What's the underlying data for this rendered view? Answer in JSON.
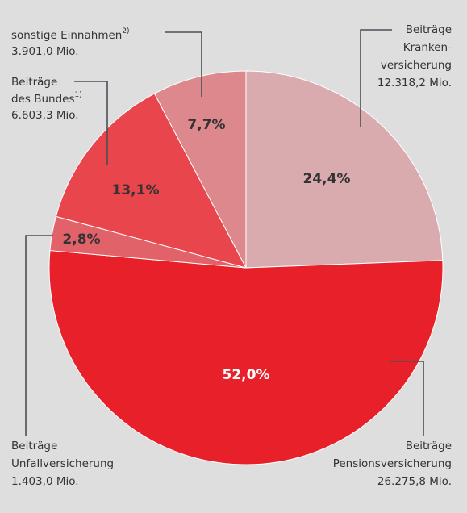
{
  "chart_data": {
    "type": "pie",
    "values": [
      24.4,
      52.0,
      2.8,
      13.1,
      7.7
    ],
    "value_labels": [
      "24,4%",
      "52,0%",
      "2,8%",
      "13,1%",
      "7,7%"
    ],
    "colors": [
      "#d9abaf",
      "#e8202a",
      "#e2626a",
      "#e8464c",
      "#dd888d"
    ],
    "labels": [
      {
        "lines": [
          "Beiträge",
          "Kranken-",
          "versicherung"
        ],
        "amount": "12.318,2 Mio."
      },
      {
        "lines": [
          "Beiträge",
          "Pensionsversicherung"
        ],
        "amount": "26.275,8 Mio."
      },
      {
        "lines": [
          "Beiträge",
          "Unfallversicherung"
        ],
        "amount": "1.403,0 Mio."
      },
      {
        "lines": [
          "Beiträge",
          "des Bundes"
        ],
        "footnote": "1)",
        "amount": "6.603,3 Mio."
      },
      {
        "lines": [
          "sonstige Einnahmen"
        ],
        "footnote": "2)",
        "amount": "3.901,0 Mio."
      }
    ]
  }
}
